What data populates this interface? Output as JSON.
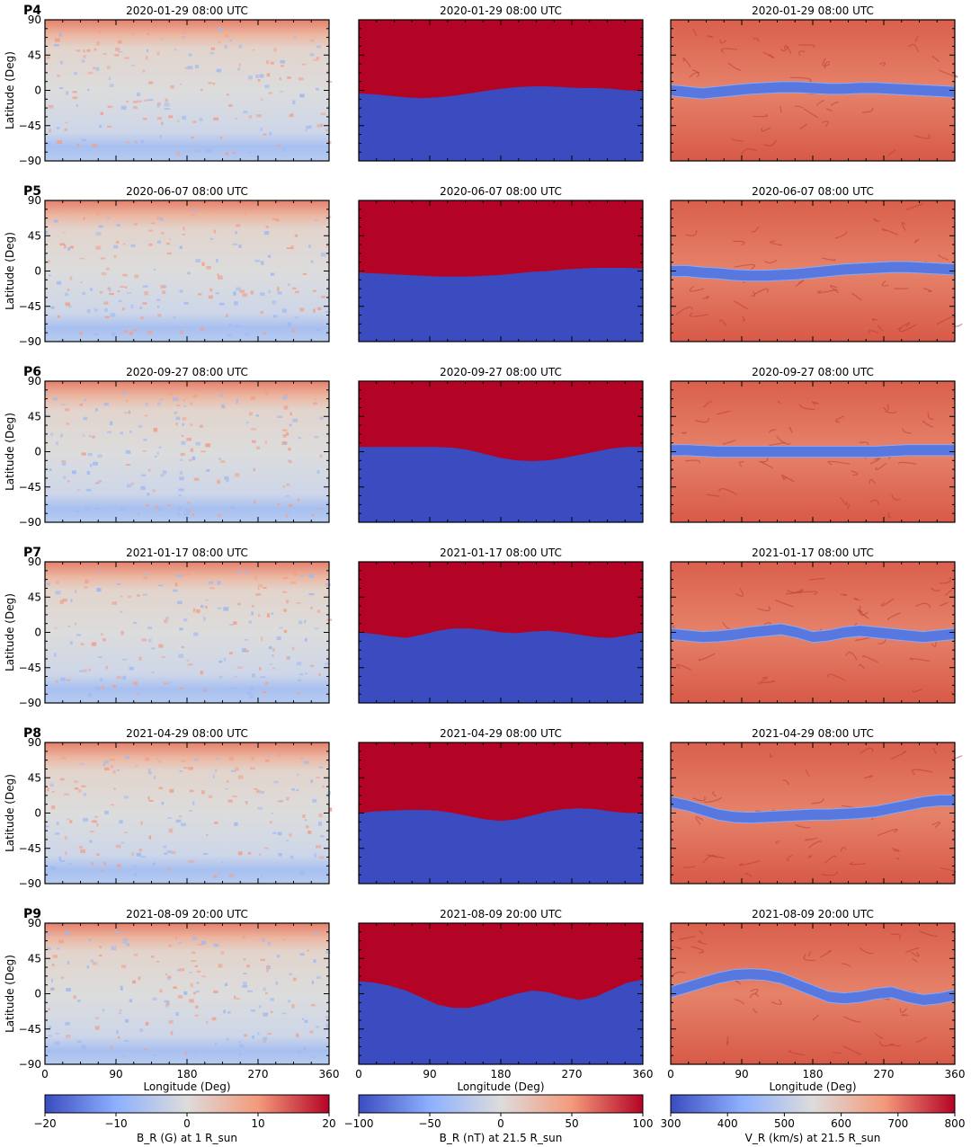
{
  "chart_data": {
    "type": "heatmap",
    "column_quantities": [
      "B_R (G) at 1 R_sun",
      "B_R (nT) at 21.5 R_sun",
      "V_R (km/s) at 21.5 R_sun"
    ],
    "rows": [
      {
        "panel": "P4",
        "timestamp": "2020-01-29 08:00 UTC",
        "current_sheet_lat": [
          -4,
          -5,
          -7,
          -9,
          -10,
          -9,
          -7,
          -4,
          -1,
          2,
          4,
          5,
          5,
          4,
          3,
          3,
          2,
          0,
          -1
        ],
        "slow_band_lat": [
          0,
          -2,
          -4,
          -2,
          0,
          2,
          3,
          4,
          4,
          3,
          2,
          2,
          3,
          3,
          2,
          1,
          0,
          -1,
          -2
        ]
      },
      {
        "panel": "P5",
        "timestamp": "2020-06-07 08:00 UTC",
        "current_sheet_lat": [
          -2,
          -3,
          -4,
          -5,
          -6,
          -7,
          -7,
          -7,
          -6,
          -5,
          -3,
          -1,
          0,
          2,
          3,
          4,
          4,
          4,
          3
        ],
        "slow_band_lat": [
          0,
          0,
          -2,
          -3,
          -5,
          -6,
          -6,
          -5,
          -4,
          -2,
          0,
          2,
          3,
          4,
          5,
          5,
          4,
          3,
          2
        ]
      },
      {
        "panel": "P6",
        "timestamp": "2020-09-27 08:00 UTC",
        "current_sheet_lat": [
          6,
          6,
          6,
          6,
          6,
          6,
          5,
          2,
          -3,
          -8,
          -11,
          -12,
          -11,
          -8,
          -4,
          0,
          4,
          6,
          6
        ],
        "slow_band_lat": [
          2,
          2,
          1,
          0,
          0,
          0,
          0,
          0,
          0,
          0,
          0,
          0,
          0,
          0,
          1,
          2,
          2,
          2,
          2
        ]
      },
      {
        "panel": "P7",
        "timestamp": "2021-01-17 08:00 UTC",
        "current_sheet_lat": [
          0,
          -2,
          -5,
          -7,
          -3,
          2,
          5,
          5,
          3,
          0,
          -1,
          1,
          2,
          0,
          -3,
          -6,
          -7,
          -4,
          0
        ],
        "slow_band_lat": [
          -2,
          -4,
          -6,
          -5,
          -3,
          0,
          2,
          4,
          0,
          -6,
          -4,
          0,
          2,
          0,
          -2,
          -4,
          -6,
          -4,
          -2
        ]
      },
      {
        "panel": "P8",
        "timestamp": "2021-04-29 08:00 UTC",
        "current_sheet_lat": [
          0,
          2,
          3,
          4,
          4,
          3,
          0,
          -4,
          -8,
          -10,
          -8,
          -3,
          2,
          5,
          6,
          5,
          2,
          0,
          0
        ],
        "slow_band_lat": [
          14,
          10,
          4,
          -2,
          -5,
          -6,
          -5,
          -4,
          -3,
          -2,
          -2,
          -1,
          0,
          2,
          6,
          10,
          14,
          16,
          16
        ]
      },
      {
        "panel": "P9",
        "timestamp": "2021-08-09 20:00 UTC",
        "current_sheet_lat": [
          16,
          14,
          10,
          4,
          -5,
          -14,
          -18,
          -18,
          -13,
          -6,
          0,
          4,
          2,
          -4,
          -8,
          -4,
          5,
          14,
          18
        ],
        "slow_band_lat": [
          2,
          8,
          14,
          20,
          24,
          25,
          24,
          20,
          12,
          4,
          -4,
          -6,
          -4,
          0,
          2,
          -4,
          -8,
          -6,
          -2
        ]
      }
    ],
    "ylabel": "Latitude (Deg)",
    "xlabel": "Longitude (Deg)",
    "xlim": [
      0,
      360
    ],
    "ylim": [
      -90,
      90
    ],
    "xticks": [
      "0",
      "90",
      "180",
      "270",
      "360"
    ],
    "yticks": [
      "90",
      "45",
      "0",
      "−45",
      "−90"
    ],
    "colorbars": [
      {
        "label": "B_R (G) at 1 R_sun",
        "unit": "G",
        "range": [
          -20,
          20
        ],
        "ticks": [
          "−20",
          "−10",
          "0",
          "10",
          "20"
        ]
      },
      {
        "label": "B_R (nT) at 21.5 R_sun",
        "unit": "nT",
        "range": [
          -100,
          100
        ],
        "ticks": [
          "−100",
          "−50",
          "0",
          "50",
          "100"
        ]
      },
      {
        "label": "V_R (km/s) at 21.5 R_sun",
        "unit": "km/s",
        "range": [
          300,
          800
        ],
        "ticks": [
          "300",
          "400",
          "500",
          "600",
          "700",
          "800"
        ]
      }
    ],
    "colormap": "coolwarm",
    "colors": {
      "negative": "#3b4cc0",
      "neutral": "#dddcdc",
      "positive": "#b40426",
      "strong_negative": "#2835b0",
      "strong_positive": "#a0001a"
    }
  }
}
